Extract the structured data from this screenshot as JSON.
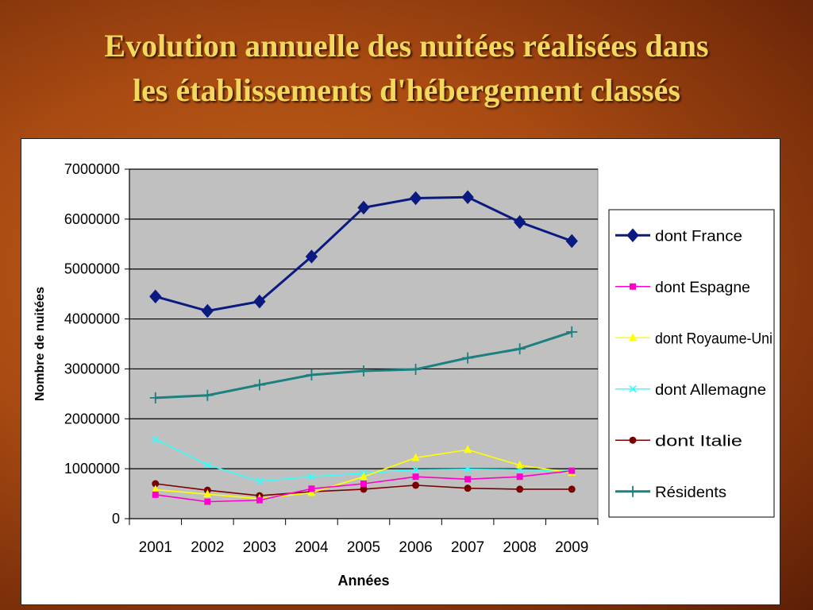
{
  "slide": {
    "title_line1": "Evolution annuelle des nuitées réalisées dans",
    "title_line2": "les établissements d'hébergement classés"
  },
  "chart_data": {
    "type": "line",
    "title": "",
    "xlabel": "Années",
    "ylabel": "Nombre de nuitées",
    "categories": [
      "2001",
      "2002",
      "2003",
      "2004",
      "2005",
      "2006",
      "2007",
      "2008",
      "2009"
    ],
    "ylim": [
      0,
      7000000
    ],
    "yticks": [
      0,
      1000000,
      2000000,
      3000000,
      4000000,
      5000000,
      6000000,
      7000000
    ],
    "grid": true,
    "plot_background": "#c0c0c0",
    "legend_position": "right",
    "series": [
      {
        "name": "dont France",
        "color": "#0a1a80",
        "marker": "diamond",
        "values": [
          4450000,
          4160000,
          4350000,
          5250000,
          6230000,
          6420000,
          6440000,
          5940000,
          5560000
        ]
      },
      {
        "name": "dont Espagne",
        "color": "#ff00cc",
        "marker": "square",
        "values": [
          480000,
          340000,
          370000,
          600000,
          700000,
          840000,
          790000,
          840000,
          960000
        ]
      },
      {
        "name": "dont Royaume-Uni",
        "color": "#ffff00",
        "marker": "triangle",
        "values": [
          580000,
          490000,
          400000,
          520000,
          840000,
          1220000,
          1380000,
          1070000,
          920000
        ]
      },
      {
        "name": "dont Allemagne",
        "color": "#33ffff",
        "marker": "x",
        "values": [
          1590000,
          1080000,
          750000,
          840000,
          910000,
          980000,
          990000,
          980000,
          960000
        ]
      },
      {
        "name": "dont Italie",
        "color": "#7a0000",
        "marker": "circle",
        "values": [
          700000,
          570000,
          460000,
          540000,
          590000,
          670000,
          610000,
          590000,
          590000
        ]
      },
      {
        "name": "Résidents",
        "color": "#1a8080",
        "marker": "plus",
        "values": [
          2420000,
          2470000,
          2680000,
          2880000,
          2960000,
          2990000,
          3220000,
          3400000,
          3740000
        ]
      }
    ]
  }
}
